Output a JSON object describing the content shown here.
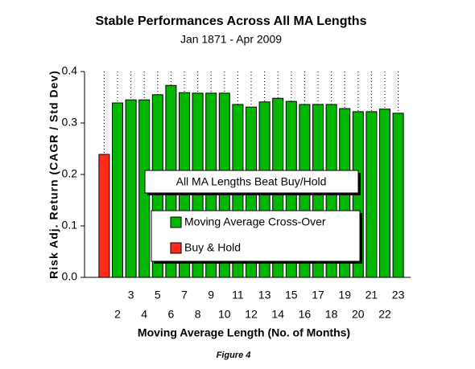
{
  "chart_data": {
    "type": "bar",
    "title": "Stable Performances Across All MA Lengths",
    "subtitle": "Jan 1871 - Apr 2009",
    "x_label": "Moving Average Length (No. of Months)",
    "y_label": "Risk Adj. Return (CAGR / Std Dev)",
    "annotation": "All MA Lengths Beat Buy/Hold",
    "caption": "Figure 4",
    "categories": [
      null,
      "2",
      "3",
      "4",
      "5",
      "6",
      "7",
      "8",
      "9",
      "10",
      "11",
      "12",
      "13",
      "14",
      "15",
      "16",
      "17",
      "18",
      "19",
      "20",
      "21",
      "22",
      "23"
    ],
    "series": [
      {
        "name": "Moving Average Cross-Over",
        "color": "#00b800",
        "values": [
          null,
          0.339,
          0.345,
          0.345,
          0.355,
          0.373,
          0.359,
          0.358,
          0.358,
          0.358,
          0.336,
          0.331,
          0.341,
          0.348,
          0.342,
          0.336,
          0.336,
          0.336,
          0.328,
          0.322,
          0.322,
          0.327,
          0.319
        ]
      },
      {
        "name": "Buy & Hold",
        "color": "#ff2a1a",
        "values": [
          0.239,
          null,
          null,
          null,
          null,
          null,
          null,
          null,
          null,
          null,
          null,
          null,
          null,
          null,
          null,
          null,
          null,
          null,
          null,
          null,
          null,
          null,
          null
        ]
      }
    ],
    "ylim": [
      0,
      0.4
    ],
    "yticks": [
      {
        "value": 0,
        "label": "0.0"
      },
      0.1,
      0.2,
      0.3,
      0.4
    ]
  }
}
